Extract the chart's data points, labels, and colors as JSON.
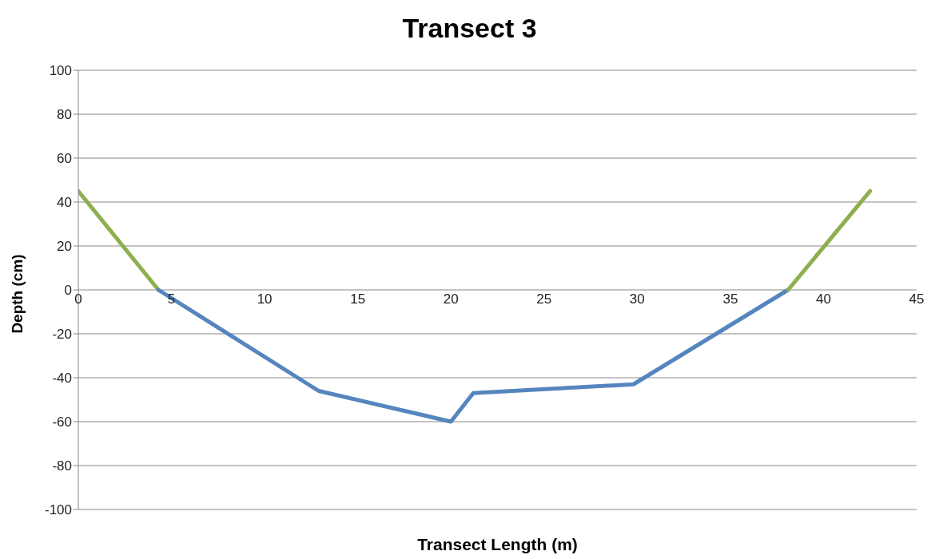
{
  "chart_data": {
    "type": "line",
    "title": "Transect 3",
    "xlabel": "Transect Length (m)",
    "ylabel": "Depth (cm)",
    "series": [
      {
        "color": "#8db04f",
        "x": [
          0,
          4.3
        ],
        "values": [
          45,
          0
        ]
      },
      {
        "color": "#5585be",
        "x": [
          4.3,
          12.9,
          20,
          21.2,
          29.8,
          38.1
        ],
        "values": [
          0,
          -46,
          -60,
          -47,
          -43,
          0
        ]
      },
      {
        "color": "#8db04f",
        "x": [
          38.1,
          42.5
        ],
        "values": [
          0,
          45
        ]
      }
    ],
    "xlim": [
      0,
      45
    ],
    "xticks": [
      0,
      5,
      10,
      15,
      20,
      25,
      30,
      35,
      40,
      45
    ],
    "ylim": [
      -100,
      100
    ],
    "yticks": [
      -100,
      -80,
      -60,
      -40,
      -20,
      0,
      20,
      40,
      60,
      80,
      100
    ],
    "grid": "y",
    "marker": "none",
    "line_style": "solid"
  }
}
